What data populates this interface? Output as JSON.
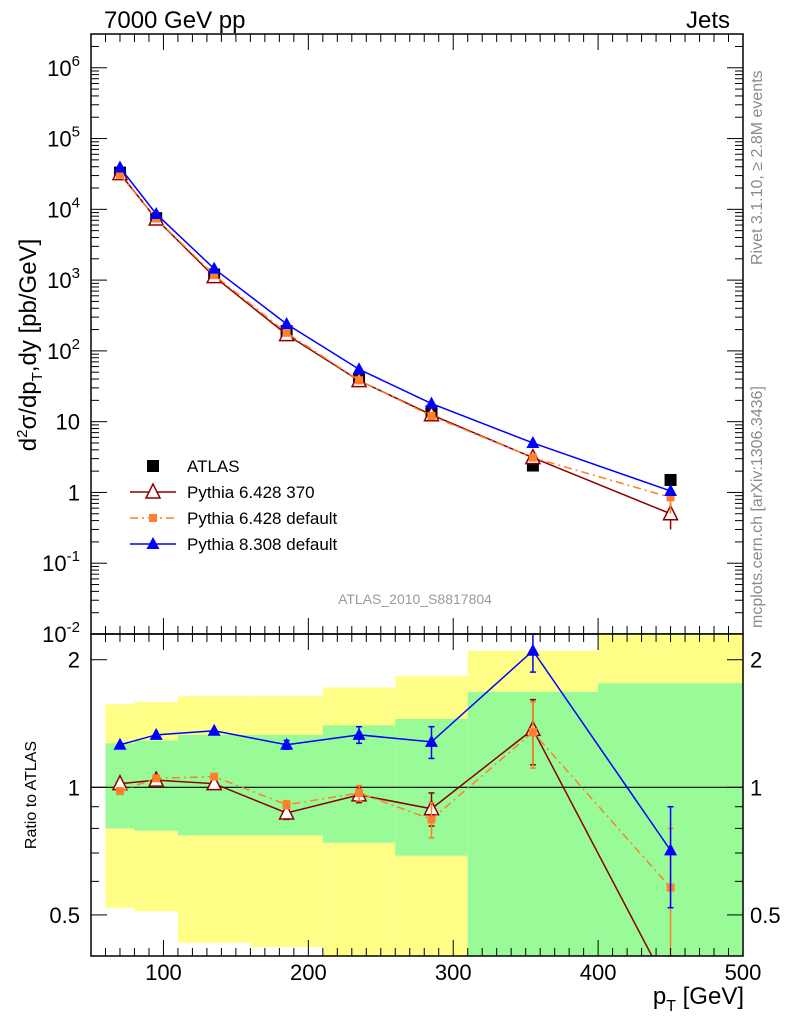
{
  "header": {
    "left": "7000 GeV pp",
    "right": "Jets"
  },
  "side_text": {
    "rivet": "Rivet 3.1.10, ≥ 2.8M events",
    "mcplots": "mcplots.cern.ch [arXiv:1306.3436]"
  },
  "watermark": "ATLAS_2010_S8817804",
  "legend": [
    {
      "label": "ATLAS",
      "marker": "square",
      "color": "#000000"
    },
    {
      "label": "Pythia 6.428 370",
      "marker": "open-triangle",
      "color": "#8b0000"
    },
    {
      "label": "Pythia 6.428 default",
      "marker": "small-square",
      "color": "#ff7f2a"
    },
    {
      "label": "Pythia 8.308 default",
      "marker": "triangle",
      "color": "#0000ff"
    }
  ],
  "colors": {
    "band_outer": "#ffff88",
    "band_inner": "#98fb98"
  },
  "chart_data": [
    {
      "type": "line",
      "scale": "log",
      "ylabel": "d²σ/dp_T,dy [pb/GeV]",
      "xlim": [
        50,
        500
      ],
      "ylim": [
        0.01,
        3000000
      ],
      "ytick_labels": [
        "10^-2",
        "10^-1",
        "1",
        "10",
        "10^2",
        "10^3",
        "10^4",
        "10^5",
        "10^6"
      ],
      "x": [
        70,
        95,
        135,
        185,
        235,
        285,
        355,
        450
      ],
      "series": [
        {
          "name": "ATLAS",
          "values": [
            33000,
            7500,
            1200,
            190,
            40,
            14,
            2.4,
            1.5
          ]
        },
        {
          "name": "Pythia 6.428 370",
          "values": [
            32000,
            7300,
            1120,
            170,
            38,
            12.5,
            3.1,
            0.5
          ],
          "errors": [
            0,
            0,
            0,
            0,
            0,
            0,
            0,
            0.2
          ]
        },
        {
          "name": "Pythia 6.428 default",
          "values": [
            31000,
            7400,
            1180,
            180,
            38.5,
            12,
            3.1,
            0.85
          ],
          "errors": [
            0,
            0,
            0,
            0,
            0,
            0,
            0,
            0.35
          ]
        },
        {
          "name": "Pythia 8.308 default",
          "values": [
            39000,
            8600,
            1450,
            240,
            55,
            18,
            5,
            1.05
          ]
        }
      ]
    },
    {
      "type": "line",
      "scale": "log",
      "ylabel": "Ratio to ATLAS",
      "xlabel": "p_T [GeV]",
      "xlim": [
        50,
        500
      ],
      "ylim": [
        0.4,
        2.3
      ],
      "ytick_labels": [
        "0.5",
        "1",
        "2"
      ],
      "xtick_labels": [
        "100",
        "200",
        "300",
        "400",
        "500"
      ],
      "x": [
        70,
        95,
        135,
        185,
        235,
        285,
        355,
        450
      ],
      "bands": {
        "edges": [
          60,
          80,
          110,
          160,
          210,
          260,
          310,
          400,
          500
        ],
        "outer": [
          [
            0.52,
            1.57
          ],
          [
            0.51,
            1.59
          ],
          [
            0.43,
            1.64
          ],
          [
            0.42,
            1.64
          ],
          [
            0.4,
            1.72
          ],
          [
            0.4,
            1.83
          ],
          [
            0.3,
            2.1
          ],
          [
            0.3,
            2.4
          ]
        ],
        "inner": [
          [
            0.8,
            1.27
          ],
          [
            0.79,
            1.29
          ],
          [
            0.77,
            1.33
          ],
          [
            0.77,
            1.33
          ],
          [
            0.74,
            1.4
          ],
          [
            0.69,
            1.45
          ],
          [
            0.4,
            1.68
          ],
          [
            0.4,
            1.76
          ]
        ]
      },
      "series": [
        {
          "name": "Pythia 6.428 370",
          "values": [
            1.02,
            1.04,
            1.02,
            0.87,
            0.96,
            0.89,
            1.37,
            0.33
          ],
          "errors": [
            0,
            0,
            0,
            0.03,
            0.04,
            0.08,
            0.24,
            0
          ]
        },
        {
          "name": "Pythia 6.428 default",
          "values": [
            0.98,
            1.05,
            1.06,
            0.91,
            0.97,
            0.84,
            1.35,
            0.58
          ],
          "errors": [
            0,
            0,
            0,
            0.02,
            0.04,
            0.08,
            0.24,
            0.22
          ]
        },
        {
          "name": "Pythia 8.308 default",
          "values": [
            1.26,
            1.33,
            1.36,
            1.26,
            1.33,
            1.28,
            2.1,
            0.71
          ],
          "errors": [
            0,
            0,
            0,
            0.03,
            0.06,
            0.11,
            0.23,
            0.19
          ]
        }
      ],
      "reference_line": 1
    }
  ]
}
